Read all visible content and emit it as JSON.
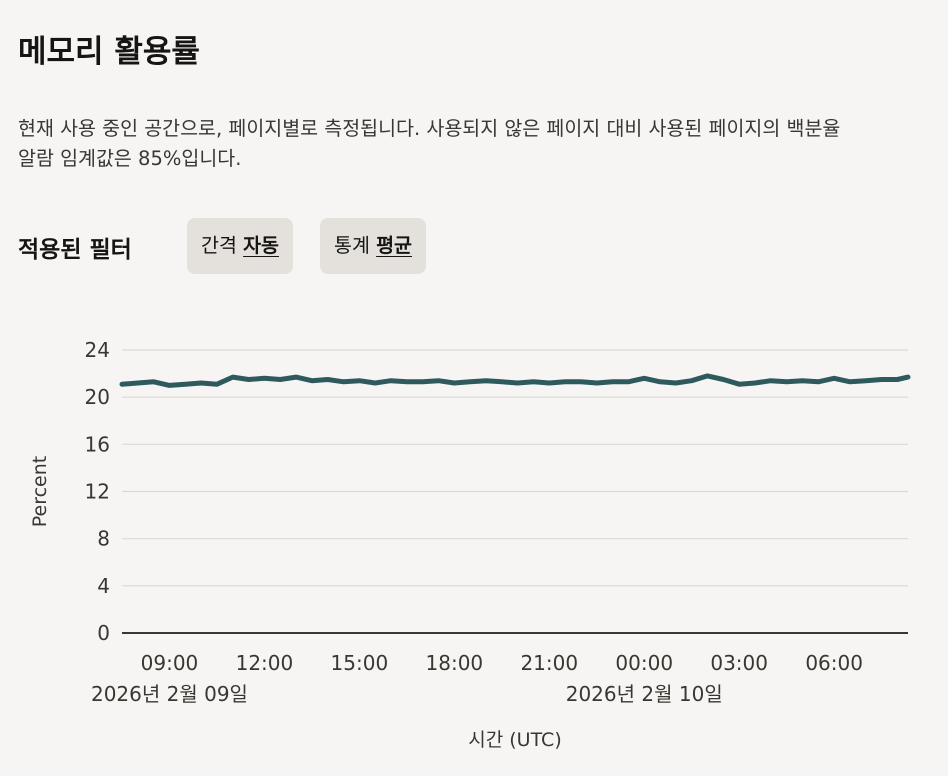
{
  "page": {
    "title": "메모리 활용률",
    "description_line1": "현재 사용 중인 공간으로, 페이지별로 측정됩니다. 사용되지 않은 페이지 대비 사용된 페이지의 백분율",
    "description_line2": "알람 임계값은 85%입니다."
  },
  "filters": {
    "label": "적용된 필터",
    "interval": {
      "name": "간격",
      "value": "자동"
    },
    "statistic": {
      "name": "통계",
      "value": "평균"
    }
  },
  "colors": {
    "background": "#f6f5f3",
    "series": "#2e5a5e",
    "grid": "#dcd9d5",
    "axis": "#3a3631"
  },
  "chart_data": {
    "type": "line",
    "xlabel": "시간 (UTC)",
    "ylabel": "Percent",
    "ylim": [
      0,
      24
    ],
    "yticks": [
      0,
      4,
      8,
      12,
      16,
      20,
      24
    ],
    "xlim": [
      "2026-02-09T07:30",
      "2026-02-10T08:20"
    ],
    "xticks": [
      {
        "t": "2026-02-09T09:00",
        "label": "09:00"
      },
      {
        "t": "2026-02-09T12:00",
        "label": "12:00"
      },
      {
        "t": "2026-02-09T15:00",
        "label": "15:00"
      },
      {
        "t": "2026-02-09T18:00",
        "label": "18:00"
      },
      {
        "t": "2026-02-09T21:00",
        "label": "21:00"
      },
      {
        "t": "2026-02-10T00:00",
        "label": "00:00"
      },
      {
        "t": "2026-02-10T03:00",
        "label": "03:00"
      },
      {
        "t": "2026-02-10T06:00",
        "label": "06:00"
      }
    ],
    "date_labels": [
      {
        "t": "2026-02-09T09:00",
        "label": "2026년 2월 09일"
      },
      {
        "t": "2026-02-10T00:00",
        "label": "2026년 2월 10일"
      }
    ],
    "grid": true,
    "legend": "none",
    "series": [
      {
        "x": [
          "2026-02-09T07:30",
          "2026-02-09T08:00",
          "2026-02-09T08:30",
          "2026-02-09T09:00",
          "2026-02-09T09:30",
          "2026-02-09T10:00",
          "2026-02-09T10:30",
          "2026-02-09T11:00",
          "2026-02-09T11:30",
          "2026-02-09T12:00",
          "2026-02-09T12:30",
          "2026-02-09T13:00",
          "2026-02-09T13:30",
          "2026-02-09T14:00",
          "2026-02-09T14:30",
          "2026-02-09T15:00",
          "2026-02-09T15:30",
          "2026-02-09T16:00",
          "2026-02-09T16:30",
          "2026-02-09T17:00",
          "2026-02-09T17:30",
          "2026-02-09T18:00",
          "2026-02-09T18:30",
          "2026-02-09T19:00",
          "2026-02-09T19:30",
          "2026-02-09T20:00",
          "2026-02-09T20:30",
          "2026-02-09T21:00",
          "2026-02-09T21:30",
          "2026-02-09T22:00",
          "2026-02-09T22:30",
          "2026-02-09T23:00",
          "2026-02-09T23:30",
          "2026-02-10T00:00",
          "2026-02-10T00:30",
          "2026-02-10T01:00",
          "2026-02-10T01:30",
          "2026-02-10T02:00",
          "2026-02-10T02:30",
          "2026-02-10T03:00",
          "2026-02-10T03:30",
          "2026-02-10T04:00",
          "2026-02-10T04:30",
          "2026-02-10T05:00",
          "2026-02-10T05:30",
          "2026-02-10T06:00",
          "2026-02-10T06:30",
          "2026-02-10T07:00",
          "2026-02-10T07:30",
          "2026-02-10T08:00",
          "2026-02-10T08:20"
        ],
        "values": [
          21.1,
          21.2,
          21.3,
          21.0,
          21.1,
          21.2,
          21.1,
          21.7,
          21.5,
          21.6,
          21.5,
          21.7,
          21.4,
          21.5,
          21.3,
          21.4,
          21.2,
          21.4,
          21.3,
          21.3,
          21.4,
          21.2,
          21.3,
          21.4,
          21.3,
          21.2,
          21.3,
          21.2,
          21.3,
          21.3,
          21.2,
          21.3,
          21.3,
          21.6,
          21.3,
          21.2,
          21.4,
          21.8,
          21.5,
          21.1,
          21.2,
          21.4,
          21.3,
          21.4,
          21.3,
          21.6,
          21.3,
          21.4,
          21.5,
          21.5,
          21.7
        ]
      }
    ]
  }
}
